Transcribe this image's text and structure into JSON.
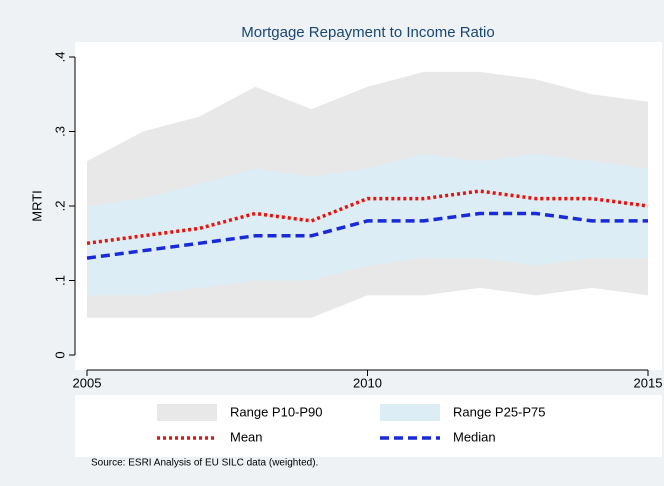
{
  "chart_data": {
    "type": "range-line",
    "title": "Mortgage Repayment to Income Ratio",
    "ylabel": "MRTI",
    "source": "Source:  ESRI Analysis of EU SILC data (weighted).",
    "x": [
      2005,
      2006,
      2007,
      2008,
      2009,
      2010,
      2011,
      2012,
      2013,
      2014,
      2015
    ],
    "xlim": [
      2005,
      2015
    ],
    "xticks": [
      2005,
      2010,
      2015
    ],
    "ylim": [
      0,
      0.4
    ],
    "yticks": [
      0,
      {
        "value": 0.1,
        "label": ".1"
      },
      {
        "value": 0.2,
        "label": ".2"
      },
      {
        "value": 0.3,
        "label": ".3"
      },
      {
        "value": 0.4,
        "label": ".4"
      }
    ],
    "bands": [
      {
        "name": "Range P10-P90",
        "color": "#e8e8e8",
        "lower": [
          0.05,
          0.05,
          0.05,
          0.05,
          0.05,
          0.08,
          0.08,
          0.09,
          0.08,
          0.09,
          0.08
        ],
        "upper": [
          0.26,
          0.3,
          0.32,
          0.36,
          0.33,
          0.36,
          0.38,
          0.38,
          0.37,
          0.35,
          0.34
        ]
      },
      {
        "name": "Range P25-P75",
        "color": "#dcedf5",
        "lower": [
          0.08,
          0.08,
          0.09,
          0.1,
          0.1,
          0.12,
          0.13,
          0.13,
          0.12,
          0.13,
          0.13
        ],
        "upper": [
          0.2,
          0.21,
          0.23,
          0.25,
          0.24,
          0.25,
          0.27,
          0.26,
          0.27,
          0.26,
          0.25
        ]
      }
    ],
    "series": [
      {
        "name": "Mean",
        "color": "#e8120c",
        "dash": "3,3",
        "values": [
          0.15,
          0.16,
          0.17,
          0.19,
          0.18,
          0.21,
          0.21,
          0.22,
          0.21,
          0.21,
          0.2
        ]
      },
      {
        "name": "Median",
        "color": "#1a2ad6",
        "dash": "9,5",
        "values": [
          0.13,
          0.14,
          0.15,
          0.16,
          0.16,
          0.18,
          0.18,
          0.19,
          0.19,
          0.18,
          0.18
        ]
      }
    ]
  }
}
